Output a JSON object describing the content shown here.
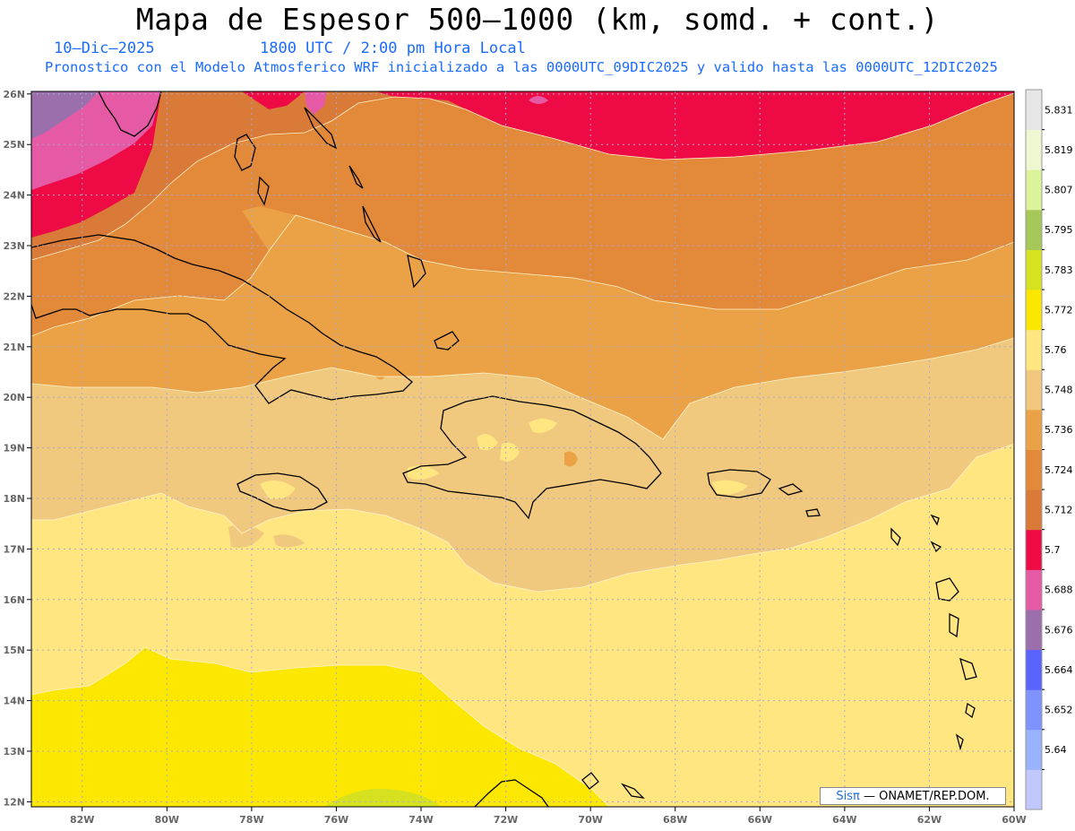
{
  "header": {
    "title": "Mapa de Espesor 500—1000 (km, somd. + cont.)",
    "date": "10—Dic—2025",
    "time": "1800 UTC / 2:00 pm Hora Local",
    "description": "Pronostico con el Modelo Atmosferico WRF inicializado a las 0000UTC_09DIC2025 y valido hasta las  0000UTC_12DIC2025"
  },
  "map": {
    "lat_ticks": [
      "26N",
      "25N",
      "24N",
      "23N",
      "22N",
      "21N",
      "20N",
      "19N",
      "18N",
      "17N",
      "16N",
      "15N",
      "14N",
      "13N",
      "12N"
    ],
    "lon_ticks": [
      "82W",
      "80W",
      "78W",
      "76W",
      "74W",
      "72W",
      "70W",
      "68W",
      "66W",
      "64W",
      "62W",
      "60W"
    ],
    "extent": {
      "lon_min": -83.2,
      "lon_max": -60,
      "lat_min": 11.9,
      "lat_max": 26.05
    },
    "grid": true,
    "fill_colors": {
      "5.688": "#9b6fab",
      "5.7": "#e65aa5",
      "5.712": "#ee0a45",
      "5.724": "#d97a38",
      "5.736": "#e3893a",
      "5.748": "#eba247",
      "5.76": "#f0c97f",
      "5.772": "#ffe680",
      "5.783": "#fce700",
      "5.795": "#d6e21f"
    }
  },
  "colorbar": {
    "labels": [
      "5.64",
      "5.652",
      "5.664",
      "5.676",
      "5.688",
      "5.7",
      "5.712",
      "5.724",
      "5.736",
      "5.748",
      "5.76",
      "5.772",
      "5.783",
      "5.795",
      "5.807",
      "5.819",
      "5.831"
    ],
    "colors": [
      "#c0c8ff",
      "#99b3ff",
      "#7f93ff",
      "#5a62ff",
      "#9b6fab",
      "#e65aa5",
      "#ee0a45",
      "#d97a38",
      "#e3893a",
      "#eba247",
      "#f0c97f",
      "#ffe680",
      "#fce700",
      "#d6e21f",
      "#a6c859",
      "#dbf39a",
      "#edf7d2",
      "#e6e6e6"
    ]
  },
  "credit": {
    "brand": "Sisπ",
    "text": "— ONAMET/REP.DOM."
  }
}
